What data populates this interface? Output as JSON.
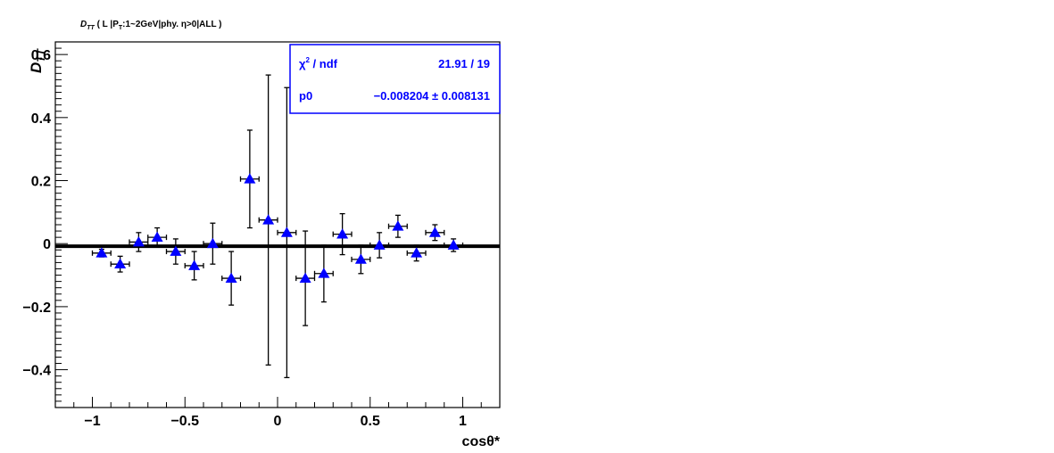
{
  "chart_data": {
    "type": "scatter",
    "title_main": "D",
    "title_sub": "TT",
    "title_rest_a": " ( L |P",
    "title_sub2": "T",
    "title_rest_b": ":1~2GeV|phy. η>0|ALL )",
    "ylabel_main": "D",
    "ylabel_sub": "TT",
    "xlabel": "cosθ*",
    "xlim": [
      -1.2,
      1.2
    ],
    "ylim": [
      -0.52,
      0.64
    ],
    "x_ticks": [
      -1,
      -0.5,
      0,
      0.5,
      1
    ],
    "x_tick_labels": [
      "−1",
      "−0.5",
      "0",
      "0.5",
      "1"
    ],
    "y_ticks": [
      -0.4,
      -0.2,
      0,
      0.2,
      0.4,
      0.6
    ],
    "y_tick_labels": [
      "−0.4",
      "−0.2",
      "0",
      "0.2",
      "0.4",
      "0.6"
    ],
    "marker_color": "#0000ff",
    "fit_color": "#000000",
    "fit_value": -0.008204,
    "x_err": 0.05,
    "points": [
      {
        "x": -0.95,
        "y": -0.03,
        "err": 0.012
      },
      {
        "x": -0.85,
        "y": -0.065,
        "err": 0.025
      },
      {
        "x": -0.75,
        "y": 0.005,
        "err": 0.03
      },
      {
        "x": -0.65,
        "y": 0.02,
        "err": 0.03
      },
      {
        "x": -0.55,
        "y": -0.025,
        "err": 0.04
      },
      {
        "x": -0.45,
        "y": -0.07,
        "err": 0.045
      },
      {
        "x": -0.35,
        "y": 0.0,
        "err": 0.065
      },
      {
        "x": -0.25,
        "y": -0.11,
        "err": 0.085
      },
      {
        "x": -0.15,
        "y": 0.205,
        "err": 0.155
      },
      {
        "x": -0.05,
        "y": 0.075,
        "err": 0.46
      },
      {
        "x": 0.05,
        "y": 0.035,
        "err": 0.46
      },
      {
        "x": 0.15,
        "y": -0.11,
        "err": 0.15
      },
      {
        "x": 0.25,
        "y": -0.095,
        "err": 0.09
      },
      {
        "x": 0.35,
        "y": 0.03,
        "err": 0.065
      },
      {
        "x": 0.45,
        "y": -0.05,
        "err": 0.045
      },
      {
        "x": 0.55,
        "y": -0.005,
        "err": 0.04
      },
      {
        "x": 0.65,
        "y": 0.055,
        "err": 0.035
      },
      {
        "x": 0.75,
        "y": -0.03,
        "err": 0.025
      },
      {
        "x": 0.85,
        "y": 0.035,
        "err": 0.025
      },
      {
        "x": 0.95,
        "y": -0.005,
        "err": 0.02
      }
    ],
    "stats": {
      "chi2_symbol": "χ",
      "chi2_sup": "2",
      "chi2_label": " / ndf",
      "chi2_value": "21.91 / 19",
      "p0_label": "p0",
      "p0_value": "−0.008204 ± 0.008131",
      "color": "#0000ff"
    }
  }
}
